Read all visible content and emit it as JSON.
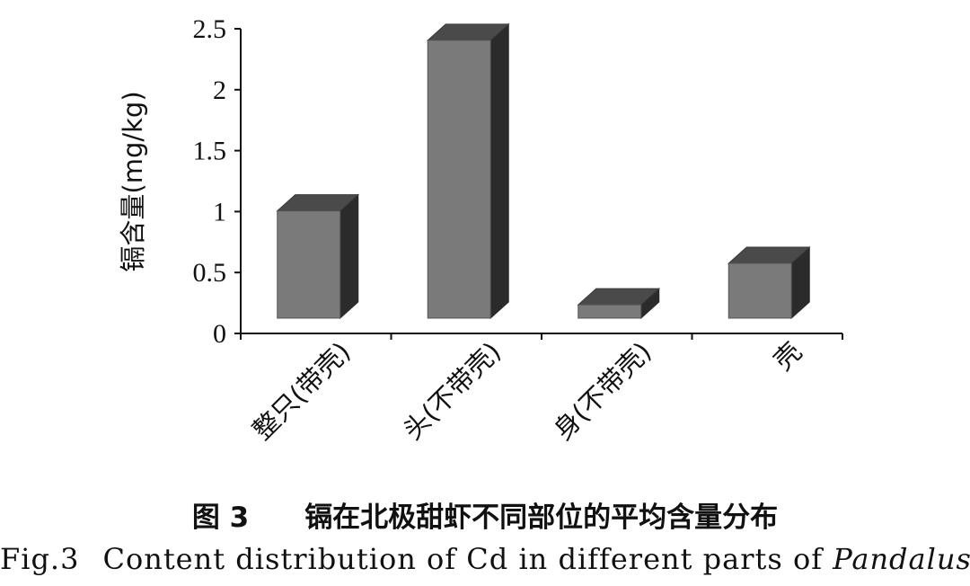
{
  "chart_data": {
    "type": "bar",
    "style": "3d",
    "categories": [
      "整只(带壳)",
      "头(不带壳)",
      "身(不带壳)",
      "壳"
    ],
    "values": [
      0.88,
      2.28,
      0.11,
      0.45
    ],
    "title": "",
    "xlabel": "",
    "ylabel": "镉含量(mg/kg)",
    "ylim": [
      0,
      2.5
    ],
    "yticks": [
      "0",
      "0.5",
      "1",
      "1.5",
      "2",
      "2.5"
    ],
    "grid": false,
    "legend": "none",
    "colors": {
      "front": "#7a7a7a",
      "top": "#4a4a4a",
      "side": "#2b2b2b",
      "axis": "#111111"
    }
  },
  "caption": {
    "cn_fig_no": "图 3",
    "cn_text": "镉在北极甜虾不同部位的平均含量分布",
    "en_fig_no": "Fig.3",
    "en_text": "Content distribution of Cd in different parts of",
    "en_species": "Pandalus"
  }
}
